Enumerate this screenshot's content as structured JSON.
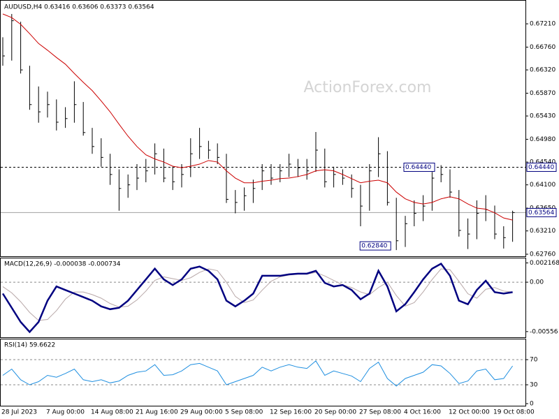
{
  "chart_data": [
    {
      "type": "ohlc",
      "title": "AUDUSD,H4  0.63416 0.63606 0.63373 0.63564",
      "watermark": "ActionForex.com",
      "categories": [
        "28 Jul 2023",
        null,
        null,
        null,
        null,
        "7 Aug 00:00",
        null,
        null,
        null,
        null,
        "14 Aug 08:00",
        null,
        null,
        null,
        null,
        "21 Aug 16:00",
        null,
        null,
        null,
        null,
        "29 Aug 00:00",
        null,
        null,
        null,
        null,
        "5 Sep 08:00",
        null,
        null,
        null,
        null,
        "12 Sep 16:00",
        null,
        null,
        null,
        null,
        "20 Sep 00:00",
        null,
        null,
        null,
        null,
        "27 Sep 08:00",
        null,
        null,
        null,
        null,
        "4 Oct 16:00",
        null,
        null,
        null,
        null,
        "12 Oct 00:00",
        null,
        null,
        null,
        null,
        "19 Oct 08:00",
        null,
        null
      ],
      "high": [
        0.6695,
        0.674,
        0.6725,
        0.664,
        0.66,
        0.659,
        0.6575,
        0.656,
        0.661,
        0.657,
        0.652,
        0.65,
        0.647,
        0.644,
        0.643,
        0.645,
        0.646,
        0.649,
        0.648,
        0.6445,
        0.645,
        0.65,
        0.652,
        0.6495,
        0.649,
        0.647,
        0.64,
        0.6405,
        0.642,
        0.645,
        0.645,
        0.645,
        0.647,
        0.646,
        0.646,
        0.6512,
        0.648,
        0.6445,
        0.644,
        0.643,
        0.641,
        0.645,
        0.6502,
        0.6475,
        0.6385,
        0.635,
        0.638,
        0.639,
        0.6435,
        0.6448,
        0.644,
        0.64,
        0.6345,
        0.638,
        0.639,
        0.637,
        0.633,
        0.636
      ],
      "low": [
        0.664,
        0.665,
        0.6625,
        0.6555,
        0.653,
        0.654,
        0.6515,
        0.652,
        0.653,
        0.6505,
        0.647,
        0.6445,
        0.641,
        0.636,
        0.6385,
        0.64,
        0.6415,
        0.643,
        0.6415,
        0.64,
        0.6405,
        0.6425,
        0.646,
        0.646,
        0.645,
        0.6375,
        0.6355,
        0.636,
        0.6375,
        0.64,
        0.641,
        0.6415,
        0.6425,
        0.6425,
        0.642,
        0.6435,
        0.6405,
        0.6405,
        0.641,
        0.6385,
        0.633,
        0.636,
        0.6425,
        0.637,
        0.6284,
        0.629,
        0.633,
        0.634,
        0.636,
        0.6415,
        0.6385,
        0.631,
        0.6286,
        0.6305,
        0.634,
        0.6305,
        0.6287,
        0.63
      ],
      "close": [
        0.6659,
        0.6727,
        0.6632,
        0.6565,
        0.6551,
        0.6565,
        0.6531,
        0.6538,
        0.6565,
        0.6511,
        0.6484,
        0.6463,
        0.643,
        0.6403,
        0.641,
        0.6423,
        0.6437,
        0.647,
        0.6423,
        0.6416,
        0.643,
        0.647,
        0.6484,
        0.6477,
        0.6463,
        0.6382,
        0.6376,
        0.6389,
        0.6403,
        0.6437,
        0.6423,
        0.6437,
        0.645,
        0.6443,
        0.6437,
        0.6477,
        0.6416,
        0.643,
        0.6423,
        0.6403,
        0.6369,
        0.6437,
        0.647,
        0.6376,
        0.6302,
        0.6335,
        0.6355,
        0.6369,
        0.6423,
        0.643,
        0.6396,
        0.6322,
        0.6315,
        0.6355,
        0.6362,
        0.6315,
        0.6308,
        0.63564
      ],
      "color": "#000000",
      "ma": {
        "color": "#cc0000",
        "values": [
          0.674,
          0.6733,
          0.672,
          0.6702,
          0.6683,
          0.667,
          0.6656,
          0.6643,
          0.6625,
          0.6608,
          0.6592,
          0.6572,
          0.6551,
          0.6527,
          0.6504,
          0.6484,
          0.6468,
          0.646,
          0.6454,
          0.6446,
          0.6443,
          0.6446,
          0.645,
          0.6457,
          0.6454,
          0.6437,
          0.6423,
          0.6414,
          0.6414,
          0.6417,
          0.6419,
          0.6422,
          0.6423,
          0.6426,
          0.643,
          0.6437,
          0.6439,
          0.6437,
          0.643,
          0.6422,
          0.6414,
          0.6417,
          0.6419,
          0.6414,
          0.6396,
          0.6383,
          0.6376,
          0.6373,
          0.6376,
          0.6383,
          0.6387,
          0.6383,
          0.6373,
          0.6365,
          0.6363,
          0.6356,
          0.6346,
          0.6342
        ]
      },
      "level": {
        "value": 0.6444,
        "label": "0.64440"
      },
      "price_line": {
        "value": 0.63564,
        "label": "0.63564"
      },
      "low_marker": {
        "value": 0.6284,
        "label": "0.62840"
      },
      "ylim": [
        0.6272,
        0.6767
      ],
      "yticks": [
        {
          "value": 0.6721,
          "label": "0.67210"
        },
        {
          "value": 0.6676,
          "label": "0.66760"
        },
        {
          "value": 0.6632,
          "label": "0.66320"
        },
        {
          "value": 0.6587,
          "label": "0.65870"
        },
        {
          "value": 0.6543,
          "label": "0.65430"
        },
        {
          "value": 0.6498,
          "label": "0.64980"
        },
        {
          "value": 0.6454,
          "label": "0.64540"
        },
        {
          "value": 0.641,
          "label": "0.64100"
        },
        {
          "value": 0.6365,
          "label": "0.63650"
        },
        {
          "value": 0.6321,
          "label": "0.63210"
        },
        {
          "value": 0.6276,
          "label": "0.62760"
        }
      ]
    },
    {
      "type": "macd",
      "title": "MACD(12,26,9) -0.000038 -0.000734",
      "series": [
        {
          "color": "#000080",
          "values": [
            -0.00128,
            -0.00288,
            -0.00448,
            -0.0056,
            -0.00448,
            -0.00208,
            -0.00048,
            -0.00088,
            -0.00128,
            -0.00168,
            -0.00208,
            -0.00272,
            -0.00304,
            -0.00288,
            -0.00208,
            -0.00088,
            0.00032,
            0.00152,
            0.00032,
            -0.00032,
            0.00032,
            0.00152,
            0.00176,
            0.00128,
            0.00032,
            -0.00208,
            -0.00272,
            -0.00208,
            -0.00128,
            0.00072,
            0.00072,
            0.00072,
            0.00088,
            0.00096,
            0.00096,
            0.00128,
            -8e-05,
            -0.00048,
            -0.00032,
            -0.00088,
            -0.00192,
            -0.00128,
            0.00128,
            -0.00048,
            -0.00328,
            -0.00248,
            -0.00112,
            0.00032,
            0.00152,
            0.00208,
            0.00072,
            -0.00208,
            -0.00248,
            -0.00088,
            0.00016,
            -0.00112,
            -0.00128,
            -0.00112
          ]
        },
        {
          "color": "#b8a8a8",
          "values": [
            -0.0005,
            -0.0012,
            -0.0022,
            -0.0034,
            -0.0043,
            -0.0042,
            -0.0032,
            -0.0019,
            -0.0011,
            -0.0011,
            -0.0014,
            -0.0018,
            -0.0024,
            -0.0028,
            -0.0027,
            -0.002,
            -0.001,
            0.0002,
            0.0006,
            0.0004,
            0.0002,
            0.0005,
            0.0011,
            0.0015,
            0.0013,
            0.0,
            -0.0016,
            -0.0023,
            -0.002,
            -0.0009,
            0.0001,
            0.0006,
            0.0008,
            0.0009,
            0.0009,
            0.0011,
            0.0007,
            0.0002,
            -0.0003,
            -0.0006,
            -0.0011,
            -0.0014,
            -0.0006,
            0.0,
            -0.0015,
            -0.0027,
            -0.0023,
            -0.0011,
            0.0003,
            0.0015,
            0.0014,
            0.0001,
            -0.0013,
            -0.0018,
            -0.0008,
            -0.0006,
            -0.001,
            -0.0011
          ]
        }
      ],
      "ylim": [
        -0.0062,
        0.0026
      ],
      "yticks": [
        0.002168,
        {
          "value": 0,
          "label": "0.00"
        },
        -0.00556
      ]
    },
    {
      "type": "rsi",
      "title": "RSI(14) 59.6622",
      "color": "#1f8fe0",
      "values": [
        45,
        55,
        38,
        30,
        35,
        45,
        42,
        48,
        55,
        38,
        35,
        38,
        33,
        36,
        45,
        50,
        52,
        62,
        45,
        46,
        52,
        62,
        64,
        58,
        52,
        30,
        35,
        40,
        45,
        58,
        52,
        58,
        62,
        58,
        56,
        68,
        45,
        52,
        48,
        44,
        35,
        56,
        66,
        40,
        28,
        40,
        45,
        50,
        62,
        60,
        48,
        32,
        36,
        52,
        55,
        38,
        40,
        60
      ],
      "levels": [
        70,
        30
      ],
      "ylim": [
        0,
        100
      ],
      "yticks": [
        70,
        30,
        0
      ]
    }
  ]
}
